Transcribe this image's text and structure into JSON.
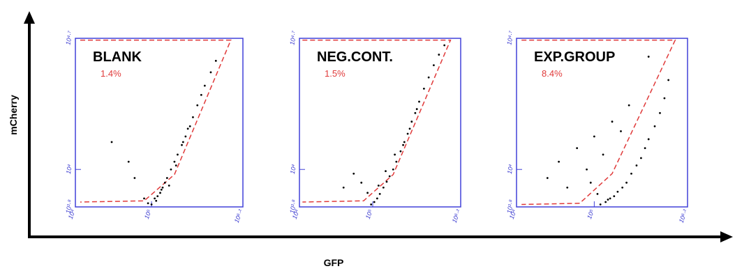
{
  "figure": {
    "x_label": "GFP",
    "y_label": "mCherry"
  },
  "chart_data": [
    {
      "type": "scatter",
      "title": "BLANK",
      "gate_label": "1.4%",
      "color": "#000000",
      "log_x": true,
      "log_y": true,
      "xlim": [
        10000,
        1584893
      ],
      "ylim": [
        6310,
        50119
      ],
      "xticks": [
        {
          "value": 10000,
          "label": "10⁴"
        },
        {
          "value": 100000,
          "label": "10⁵"
        },
        {
          "value": 1584893,
          "label": "10⁶·²"
        }
      ],
      "yticks": [
        {
          "value": 6310,
          "label": "10³·⁸"
        },
        {
          "value": 10000,
          "label": "10⁴"
        },
        {
          "value": 50119,
          "label": "10⁴·⁷"
        }
      ],
      "x": [
        90000,
        100000,
        110000,
        120000,
        130000,
        140000,
        150000,
        160000,
        180000,
        200000,
        220000,
        250000,
        280000,
        300000,
        350000,
        400000,
        450000,
        500000,
        600000,
        700000,
        60000,
        30000,
        50000,
        80000,
        115000,
        135000,
        170000,
        210000,
        260000,
        320000
      ],
      "y": [
        6600,
        6500,
        7000,
        7200,
        7500,
        8000,
        8500,
        9000,
        10000,
        11000,
        12000,
        13500,
        15000,
        16500,
        19000,
        22000,
        25000,
        28000,
        33000,
        38000,
        9000,
        14000,
        11000,
        7000,
        6800,
        7800,
        8200,
        10500,
        14000,
        17000
      ],
      "gate": {
        "color": "#e03a3a",
        "x": [
          11600,
          1100000,
          200000,
          80000,
          11600
        ],
        "y": [
          49000,
          49000,
          9400,
          6800,
          6700
        ]
      }
    },
    {
      "type": "scatter",
      "title": "NEG.CONT.",
      "gate_label": "1.5%",
      "color": "#000000",
      "log_x": true,
      "log_y": true,
      "xlim": [
        10000,
        1584893
      ],
      "ylim": [
        6310,
        50119
      ],
      "xticks": [
        {
          "value": 10000,
          "label": "10⁴"
        },
        {
          "value": 100000,
          "label": "10⁵"
        },
        {
          "value": 1584893,
          "label": "10⁶·²"
        }
      ],
      "yticks": [
        {
          "value": 6310,
          "label": "10³·⁸"
        },
        {
          "value": 10000,
          "label": "10⁴"
        },
        {
          "value": 50119,
          "label": "10⁴·⁷"
        }
      ],
      "x": [
        95000,
        105000,
        115000,
        125000,
        140000,
        155000,
        170000,
        190000,
        210000,
        240000,
        270000,
        300000,
        340000,
        380000,
        430000,
        500000,
        580000,
        680000,
        800000,
        950000,
        40000,
        55000,
        70000,
        85000,
        120000,
        150000,
        200000,
        260000,
        320000,
        400000
      ],
      "y": [
        6500,
        6700,
        7000,
        7400,
        8000,
        8600,
        9200,
        10000,
        11000,
        12500,
        14000,
        15500,
        18000,
        20000,
        23000,
        27000,
        31000,
        36000,
        41000,
        46000,
        8000,
        9500,
        8500,
        7500,
        8200,
        9800,
        12000,
        13500,
        16500,
        21000
      ],
      "gate": {
        "color": "#e03a3a",
        "x": [
          11000,
          1150000,
          190000,
          75000,
          11000
        ],
        "y": [
          49000,
          49000,
          9400,
          6800,
          6700
        ]
      }
    },
    {
      "type": "scatter",
      "title": "EXP.GROUP",
      "gate_label": "8.4%",
      "color": "#000000",
      "log_x": true,
      "log_y": true,
      "xlim": [
        10000,
        1584893
      ],
      "ylim": [
        6310,
        50119
      ],
      "xticks": [
        {
          "value": 10000,
          "label": "10⁴"
        },
        {
          "value": 100000,
          "label": "10⁵"
        },
        {
          "value": 1584893,
          "label": "10⁶·²"
        }
      ],
      "yticks": [
        {
          "value": 6310,
          "label": "10³·⁸"
        },
        {
          "value": 10000,
          "label": "10⁴"
        },
        {
          "value": 50119,
          "label": "10⁴·⁷"
        }
      ],
      "x": [
        120000,
        140000,
        160000,
        180000,
        200000,
        230000,
        260000,
        300000,
        350000,
        400000,
        450000,
        500000,
        600000,
        700000,
        800000,
        900000,
        25000,
        35000,
        45000,
        60000,
        80000,
        100000,
        130000,
        170000,
        220000,
        280000,
        150000,
        110000,
        90000,
        500000
      ],
      "y": [
        6500,
        6700,
        7000,
        7200,
        7600,
        8000,
        8500,
        9500,
        10500,
        11500,
        13000,
        14500,
        17000,
        20000,
        24000,
        30000,
        9000,
        11000,
        8000,
        13000,
        10000,
        15000,
        12000,
        18000,
        16000,
        22000,
        6900,
        7400,
        8500,
        40000
      ],
      "gate": {
        "color": "#e03a3a",
        "x": [
          11600,
          1100000,
          170000,
          65000,
          11600
        ],
        "y": [
          49000,
          49000,
          9500,
          6600,
          6500
        ]
      }
    }
  ]
}
